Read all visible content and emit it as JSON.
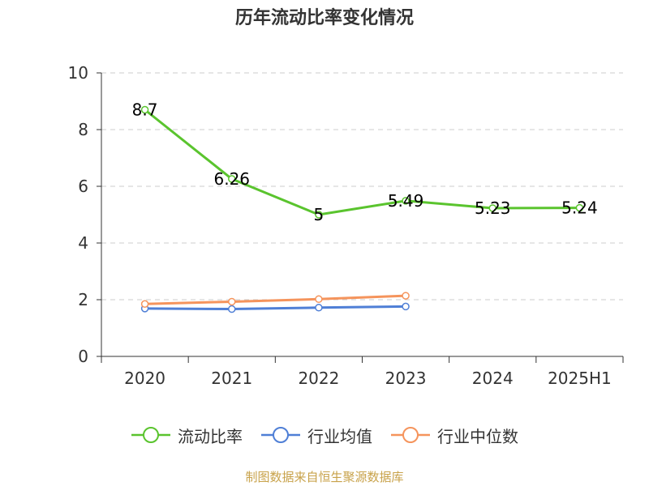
{
  "chart_data": {
    "type": "line",
    "title": "历年流动比率变化情况",
    "categories": [
      "2020",
      "2021",
      "2022",
      "2023",
      "2024",
      "2025H1"
    ],
    "ylim": [
      0,
      10
    ],
    "yticks": [
      "0",
      "2",
      "4",
      "6",
      "8",
      "10"
    ],
    "grid": true,
    "legend_position": "bottom",
    "series": [
      {
        "name": "流动比率",
        "color": "#5ac42e",
        "values": [
          8.7,
          6.26,
          5,
          5.49,
          5.23,
          5.24
        ],
        "labels": [
          "8.7",
          "6.26",
          "5",
          "5.49",
          "5.23",
          "5.24"
        ]
      },
      {
        "name": "行业均值",
        "color": "#4f7fd6",
        "values": [
          1.69,
          1.67,
          1.72,
          1.76,
          null,
          null
        ]
      },
      {
        "name": "行业中位数",
        "color": "#f5945c",
        "values": [
          1.85,
          1.93,
          2.02,
          2.14,
          null,
          null
        ]
      }
    ],
    "source": "制图数据来自恒生聚源数据库"
  }
}
